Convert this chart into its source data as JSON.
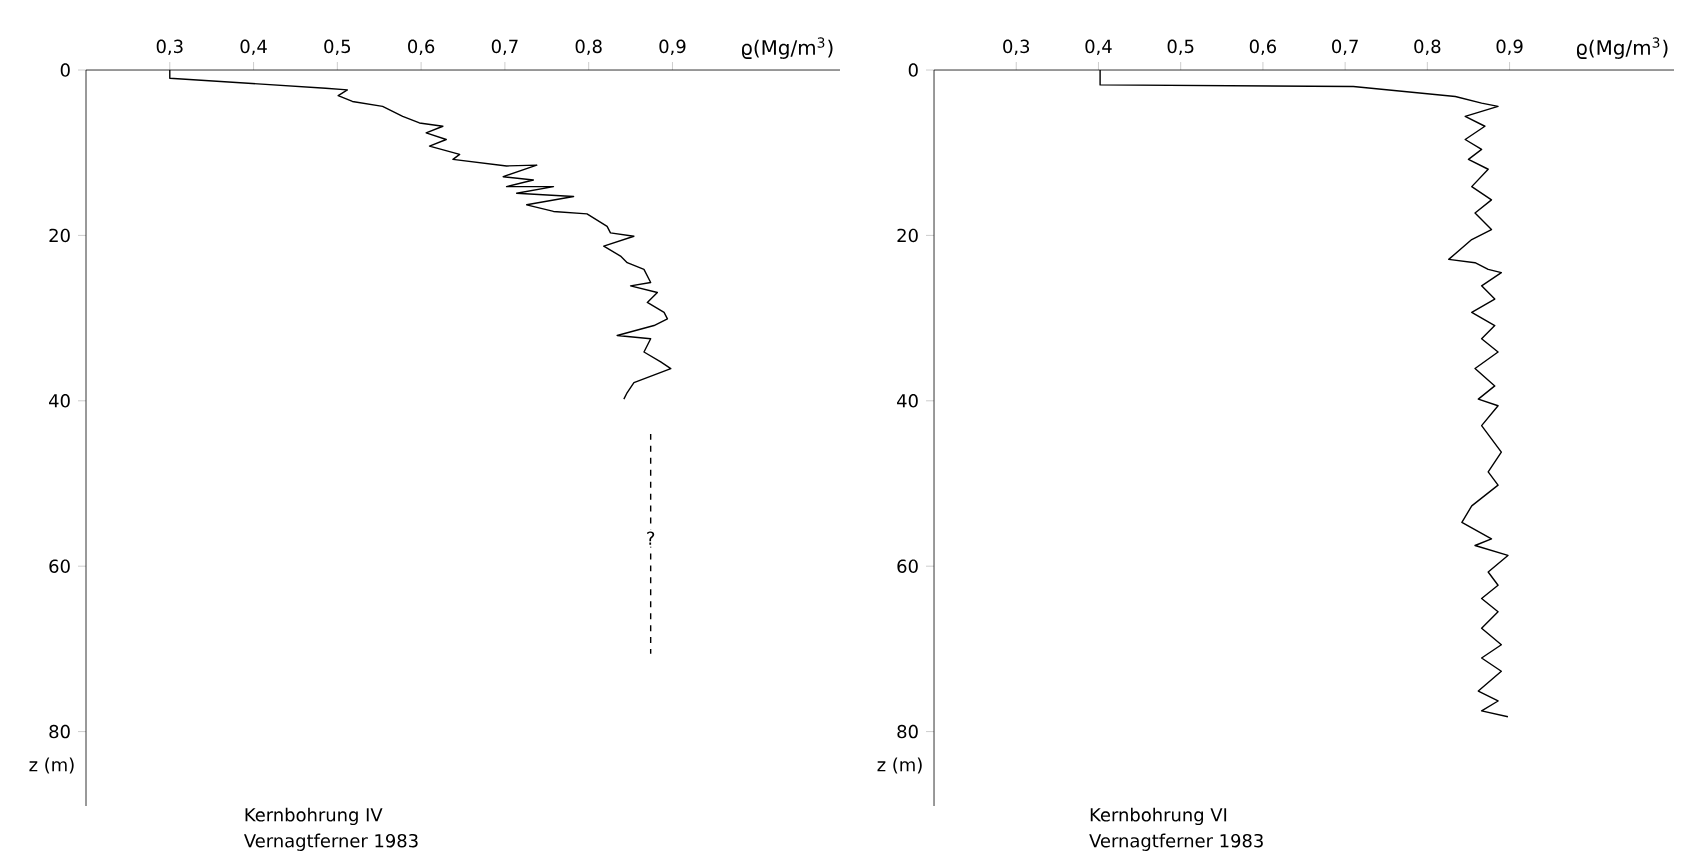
{
  "chart_data": [
    {
      "type": "line",
      "xlabel": "ϱ(Mg/m$^{3}$)",
      "ylabel": "z (m)",
      "xlim": [
        0.2,
        1.1
      ],
      "ylim": [
        89,
        0
      ],
      "xticks": [
        {
          "value": 0.3,
          "label": "0,3"
        },
        {
          "value": 0.4,
          "label": "0,4"
        },
        {
          "value": 0.5,
          "label": "0,5"
        },
        {
          "value": 0.6,
          "label": "0,6"
        },
        {
          "value": 0.7,
          "label": "0,7"
        },
        {
          "value": 0.8,
          "label": "0,8"
        },
        {
          "value": 0.9,
          "label": "0,9"
        }
      ],
      "yticks": [
        0,
        20,
        40,
        60,
        80
      ],
      "marker": "none",
      "series": [
        {
          "color": "#000000",
          "line_style": "solid",
          "x": [
            0.3,
            0.3,
            0.486,
            0.512,
            0.501,
            0.518,
            0.554,
            0.578,
            0.598,
            0.626,
            0.606,
            0.63,
            0.61,
            0.646,
            0.638,
            0.702,
            0.738,
            0.698,
            0.734,
            0.702,
            0.758,
            0.714,
            0.782,
            0.726,
            0.758,
            0.798,
            0.822,
            0.826,
            0.854,
            0.818,
            0.838,
            0.846,
            0.866,
            0.874,
            0.85,
            0.882,
            0.87,
            0.89,
            0.894,
            0.878,
            0.834,
            0.874,
            0.866,
            0.886,
            0.898,
            0.854,
            0.846,
            0.842
          ],
          "values": [
            0,
            1.0,
            2.2,
            2.4,
            3.1,
            3.8,
            4.4,
            5.6,
            6.4,
            6.8,
            7.6,
            8.4,
            9.2,
            10.2,
            10.8,
            11.6,
            11.5,
            12.9,
            13.3,
            14.1,
            14.1,
            14.9,
            15.3,
            16.3,
            17.1,
            17.4,
            18.9,
            19.7,
            20.1,
            21.3,
            22.5,
            23.3,
            24.1,
            25.7,
            26.1,
            26.9,
            28.1,
            29.3,
            30.1,
            30.9,
            32.1,
            32.5,
            34.1,
            35.3,
            36.1,
            37.8,
            39.0,
            39.8
          ]
        },
        {
          "color": "#000000",
          "line_style": "dashed",
          "x": [
            0.874,
            0.874
          ],
          "values": [
            44,
            70.6
          ]
        }
      ],
      "annotations": [
        {
          "text": "?",
          "x": 0.874,
          "y": 56.6
        },
        "Kernbohrung IV",
        "Vernagtferner 1983"
      ]
    },
    {
      "type": "line",
      "xlabel": "ϱ(Mg/m$^{3}$)",
      "ylabel": "z (m)",
      "xlim": [
        0.2,
        1.1
      ],
      "ylim": [
        89,
        0
      ],
      "xticks": [
        {
          "value": 0.3,
          "label": "0,3"
        },
        {
          "value": 0.4,
          "label": "0,4"
        },
        {
          "value": 0.5,
          "label": "0,5"
        },
        {
          "value": 0.6,
          "label": "0,6"
        },
        {
          "value": 0.7,
          "label": "0,7"
        },
        {
          "value": 0.8,
          "label": "0,8"
        },
        {
          "value": 0.9,
          "label": "0,9"
        }
      ],
      "yticks": [
        0,
        20,
        40,
        60,
        80
      ],
      "marker": "none",
      "series": [
        {
          "color": "#000000",
          "line_style": "solid",
          "x": [
            0.402,
            0.402,
            0.71,
            0.834,
            0.866,
            0.886,
            0.846,
            0.87,
            0.846,
            0.866,
            0.85,
            0.874,
            0.854,
            0.878,
            0.858,
            0.878,
            0.854,
            0.826,
            0.858,
            0.874,
            0.89,
            0.866,
            0.882,
            0.854,
            0.882,
            0.866,
            0.886,
            0.858,
            0.882,
            0.862,
            0.886,
            0.866,
            0.89,
            0.874,
            0.886,
            0.854,
            0.842,
            0.878,
            0.858,
            0.898,
            0.874,
            0.886,
            0.866,
            0.886,
            0.866,
            0.89,
            0.866,
            0.89,
            0.862,
            0.886,
            0.866,
            0.898
          ],
          "values": [
            0,
            1.8,
            2.0,
            3.2,
            4.0,
            4.4,
            5.6,
            6.8,
            8.4,
            9.6,
            10.8,
            12.0,
            14.1,
            15.7,
            17.3,
            19.3,
            20.5,
            22.9,
            23.3,
            24.1,
            24.5,
            26.1,
            27.7,
            29.3,
            30.9,
            32.5,
            34.1,
            36.1,
            38.2,
            39.8,
            40.6,
            43.0,
            46.2,
            48.6,
            50.2,
            52.7,
            54.7,
            56.7,
            57.5,
            58.7,
            60.7,
            62.3,
            63.9,
            65.5,
            67.5,
            69.5,
            71.1,
            72.7,
            75.1,
            76.3,
            77.5,
            78.2
          ]
        }
      ],
      "annotations": [
        "Kernbohrung VI",
        "Vernagtferner 1983"
      ]
    }
  ]
}
